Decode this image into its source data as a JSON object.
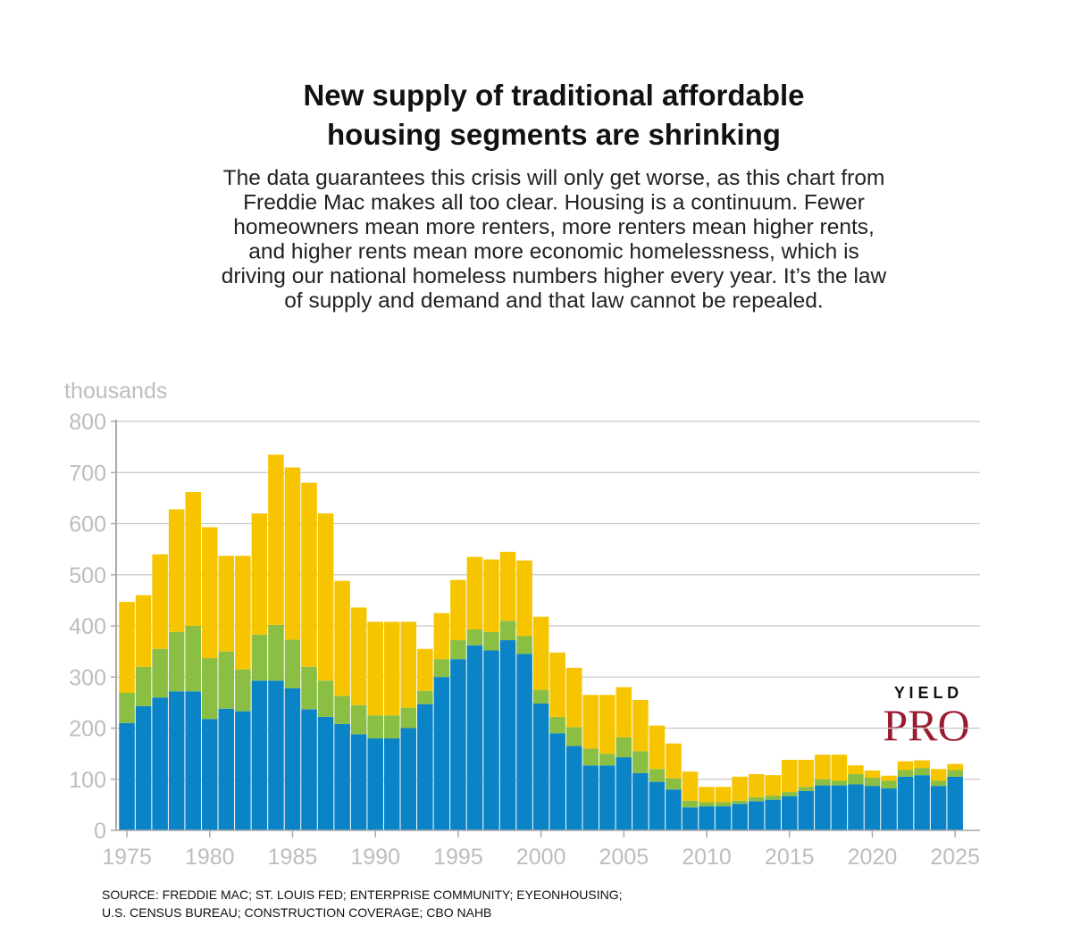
{
  "chart_data": {
    "type": "bar",
    "stacked": true,
    "title": [
      "New supply of traditional affordable",
      "housing segments are shrinking"
    ],
    "subtitle": [
      "The data guarantees this crisis will only get worse, as this chart from",
      "Freddie Mac makes all too clear. Housing is a continuum. Fewer",
      "homeowners mean more renters, more renters mean higher rents,",
      "and higher rents mean more economic homelessness, which is",
      "driving our national homeless numbers higher every year. It’s the law",
      "of supply and demand and that law cannot be repealed."
    ],
    "y_label": "thousands",
    "source": [
      "SOURCE: FREDDIE MAC; ST. LOUIS FED; ENTERPRISE COMMUNITY; EYEONHOUSING;",
      "U.S. CENSUS BUREAU; CONSTRUCTION COVERAGE; CBO NAHB"
    ],
    "logo": {
      "top": "Y I E L D",
      "bottom": "PRO"
    },
    "x": [
      1975,
      1976,
      1977,
      1978,
      1979,
      1980,
      1981,
      1982,
      1983,
      1984,
      1985,
      1986,
      1987,
      1988,
      1989,
      1990,
      1991,
      1992,
      1993,
      1994,
      1995,
      1996,
      1997,
      1998,
      1999,
      2000,
      2001,
      2002,
      2003,
      2004,
      2005,
      2006,
      2007,
      2008,
      2009,
      2010,
      2011,
      2012,
      2013,
      2014,
      2015,
      2016,
      2017,
      2018,
      2019,
      2020,
      2021,
      2022,
      2023,
      2024,
      2025
    ],
    "series": [
      {
        "color": "#0a84c6",
        "values": [
          210,
          243,
          260,
          272,
          272,
          218,
          238,
          233,
          293,
          293,
          278,
          237,
          222,
          208,
          188,
          180,
          180,
          200,
          247,
          300,
          335,
          362,
          352,
          372,
          345,
          248,
          190,
          165,
          127,
          127,
          143,
          112,
          95,
          80,
          45,
          47,
          47,
          52,
          57,
          60,
          67,
          77,
          88,
          88,
          90,
          87,
          82,
          105,
          108,
          87,
          105
        ]
      },
      {
        "color": "#8bbf44",
        "values": [
          59,
          77,
          95,
          116,
          128,
          119,
          112,
          82,
          90,
          109,
          95,
          83,
          71,
          55,
          57,
          45,
          45,
          40,
          26,
          35,
          37,
          31,
          36,
          38,
          35,
          27,
          32,
          37,
          33,
          23,
          39,
          43,
          25,
          22,
          13,
          8,
          8,
          6,
          8,
          8,
          8,
          8,
          12,
          9,
          20,
          16,
          15,
          13,
          14,
          10,
          13
        ]
      },
      {
        "color": "#f7c500",
        "values": [
          178,
          140,
          185,
          240,
          262,
          256,
          187,
          222,
          237,
          333,
          337,
          360,
          327,
          225,
          191,
          183,
          183,
          168,
          82,
          90,
          118,
          142,
          142,
          135,
          148,
          143,
          126,
          116,
          105,
          115,
          98,
          100,
          85,
          68,
          57,
          30,
          30,
          47,
          45,
          40,
          63,
          53,
          48,
          51,
          17,
          14,
          10,
          17,
          15,
          23,
          12
        ]
      }
    ],
    "xlim": [
      1974.35,
      2026.5
    ],
    "xticks": [
      1975,
      1980,
      1985,
      1990,
      1995,
      2000,
      2005,
      2010,
      2015,
      2020,
      2025
    ],
    "ylim": [
      0,
      800
    ],
    "yticks": [
      0,
      100,
      200,
      300,
      400,
      500,
      600,
      700,
      800
    ],
    "grid": true
  }
}
